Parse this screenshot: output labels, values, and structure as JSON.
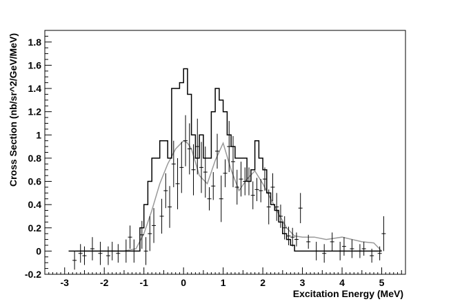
{
  "chart_data": {
    "type": "line",
    "xlabel": "Excitation Energy (MeV)",
    "ylabel": "Cross Section (nb/sr^2/GeV/MeV)",
    "xlim": [
      -3.5,
      5.6
    ],
    "ylim": [
      -0.2,
      1.9
    ],
    "xticks": [
      "-3",
      "-2",
      "-1",
      "0",
      "1",
      "2",
      "3",
      "4",
      "5"
    ],
    "yticks": [
      "-0.2",
      "0",
      "0.2",
      "0.4",
      "0.6",
      "0.8",
      "1",
      "1.2",
      "1.4",
      "1.6",
      "1.8"
    ],
    "grid": false,
    "colors": {
      "histogram": "#000000",
      "fit_curve": "#999999",
      "error_bars": "#000000"
    },
    "series": [
      {
        "kind": "histogram",
        "edges": [
          -2.9,
          -1.1,
          -1.0,
          -0.9,
          -0.8,
          -0.7,
          -0.6,
          -0.5,
          -0.4,
          -0.3,
          -0.2,
          -0.1,
          0.0,
          0.1,
          0.2,
          0.3,
          0.4,
          0.5,
          0.6,
          0.7,
          0.8,
          0.9,
          1.0,
          1.1,
          1.2,
          1.3,
          1.4,
          1.5,
          1.6,
          1.7,
          1.8,
          1.9,
          2.0,
          2.1,
          2.2,
          2.3,
          2.4,
          2.5,
          2.6,
          2.7,
          2.8,
          2.9,
          3.0,
          5.0
        ],
        "values": [
          0,
          0.2,
          0.4,
          0.6,
          0.8,
          0.8,
          0.95,
          0.95,
          0.8,
          1.4,
          1.4,
          1.45,
          1.57,
          1.35,
          1.0,
          0.8,
          1.0,
          0.8,
          0.8,
          1.2,
          1.4,
          1.3,
          1.2,
          1.0,
          0.9,
          0.8,
          0.8,
          0.8,
          0.6,
          0.7,
          0.95,
          0.8,
          0.7,
          0.5,
          0.4,
          0.35,
          0.25,
          0.15,
          0.1,
          0.05,
          0.0,
          0.0,
          0
        ]
      },
      {
        "kind": "fit",
        "x": [
          -2.7,
          -1.5,
          -1.2,
          -1.0,
          -0.8,
          -0.6,
          -0.4,
          -0.2,
          0.0,
          0.1,
          0.2,
          0.4,
          0.6,
          0.8,
          1.0,
          1.2,
          1.4,
          1.6,
          1.8,
          2.0,
          2.2,
          2.4,
          2.6,
          2.8,
          3.0,
          3.3,
          3.6,
          4.0,
          4.5,
          4.8,
          5.0
        ],
        "y": [
          0.0,
          0.0,
          0.02,
          0.15,
          0.35,
          0.58,
          0.75,
          0.88,
          0.95,
          0.93,
          0.88,
          0.65,
          0.58,
          0.78,
          0.93,
          0.7,
          0.52,
          0.62,
          0.69,
          0.58,
          0.45,
          0.32,
          0.2,
          0.13,
          0.12,
          0.12,
          0.1,
          0.12,
          0.08,
          0.07,
          0.0
        ]
      },
      {
        "kind": "errorbars",
        "x": [
          -2.75,
          -2.6,
          -2.5,
          -2.3,
          -2.1,
          -1.9,
          -1.8,
          -1.65,
          -1.45,
          -1.35,
          -1.25,
          -1.05,
          -0.95,
          -0.85,
          -0.75,
          -0.55,
          -0.45,
          -0.35,
          -0.25,
          -0.15,
          -0.05,
          0.05,
          0.15,
          0.25,
          0.35,
          0.45,
          0.55,
          0.65,
          0.75,
          0.85,
          0.95,
          1.05,
          1.15,
          1.25,
          1.35,
          1.45,
          1.55,
          1.65,
          1.75,
          1.85,
          1.95,
          2.05,
          2.15,
          2.25,
          2.35,
          2.45,
          2.55,
          2.65,
          2.75,
          2.85,
          2.95,
          3.15,
          3.35,
          3.55,
          3.75,
          3.95,
          4.05,
          4.25,
          4.45,
          4.55,
          4.75,
          4.95,
          5.05
        ],
        "y": [
          -0.08,
          -0.02,
          -0.04,
          0.02,
          -0.02,
          -0.04,
          0.0,
          -0.02,
          0.0,
          0.12,
          0.0,
          0.14,
          0.0,
          0.15,
          0.22,
          0.3,
          0.52,
          0.38,
          0.75,
          0.58,
          0.72,
          0.95,
          0.88,
          0.7,
          0.9,
          0.72,
          0.68,
          0.45,
          0.56,
          0.86,
          0.45,
          0.67,
          0.9,
          0.77,
          0.55,
          0.62,
          0.6,
          0.6,
          0.48,
          0.53,
          0.52,
          0.62,
          0.38,
          0.55,
          0.38,
          0.3,
          0.2,
          0.13,
          0.12,
          0.1,
          0.37,
          0.08,
          0.0,
          -0.02,
          0.08,
          0.0,
          0.04,
          0.02,
          0.0,
          0.02,
          -0.04,
          -0.02,
          0.15
        ],
        "err": [
          0.08,
          0.08,
          0.08,
          0.1,
          0.1,
          0.08,
          0.08,
          0.08,
          0.1,
          0.1,
          0.1,
          0.12,
          0.12,
          0.15,
          0.15,
          0.15,
          0.15,
          0.18,
          0.2,
          0.22,
          0.22,
          0.22,
          0.22,
          0.22,
          0.24,
          0.22,
          0.22,
          0.1,
          0.12,
          0.15,
          0.2,
          0.12,
          0.22,
          0.22,
          0.15,
          0.15,
          0.12,
          0.12,
          0.12,
          0.1,
          0.1,
          0.1,
          0.15,
          0.12,
          0.12,
          0.1,
          0.1,
          0.08,
          0.08,
          0.06,
          0.13,
          0.06,
          0.08,
          0.08,
          0.08,
          0.08,
          0.08,
          0.08,
          0.06,
          0.06,
          0.06,
          0.06,
          0.15
        ]
      }
    ]
  }
}
